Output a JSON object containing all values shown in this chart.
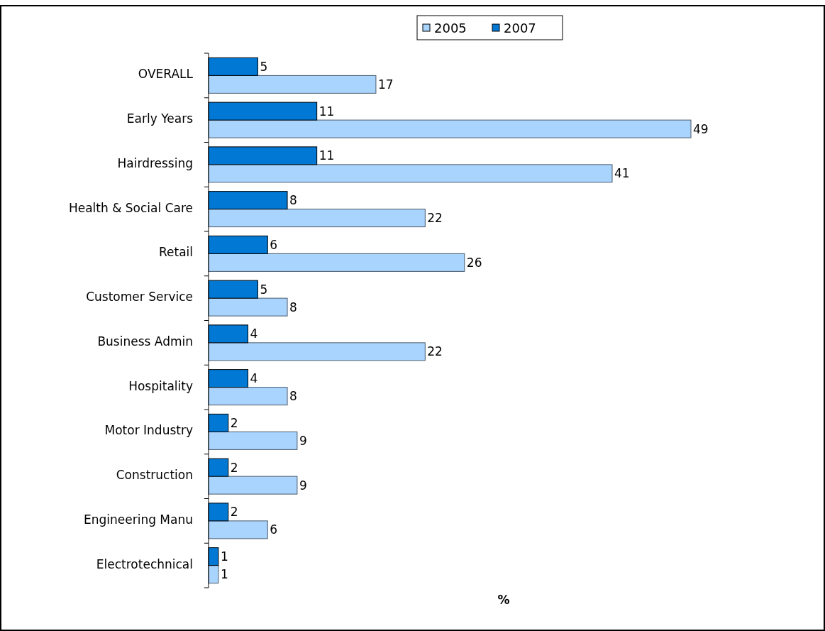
{
  "chart_data": {
    "type": "bar",
    "orientation": "horizontal",
    "xlabel": "%",
    "categories": [
      "OVERALL",
      "Early Years",
      "Hairdressing",
      "Health & Social Care",
      "Retail",
      "Customer Service",
      "Business Admin",
      "Hospitality",
      "Motor Industry",
      "Construction",
      "Engineering Manu",
      "Electrotechnical"
    ],
    "series": [
      {
        "name": "2005",
        "color": "#a9d4fe",
        "values": [
          17,
          49,
          41,
          22,
          26,
          8,
          22,
          8,
          9,
          9,
          6,
          1
        ]
      },
      {
        "name": "2007",
        "color": "#0078d4",
        "values": [
          5,
          11,
          11,
          8,
          6,
          5,
          4,
          4,
          2,
          2,
          2,
          1
        ]
      }
    ],
    "data_labels": true,
    "legend": "top"
  }
}
